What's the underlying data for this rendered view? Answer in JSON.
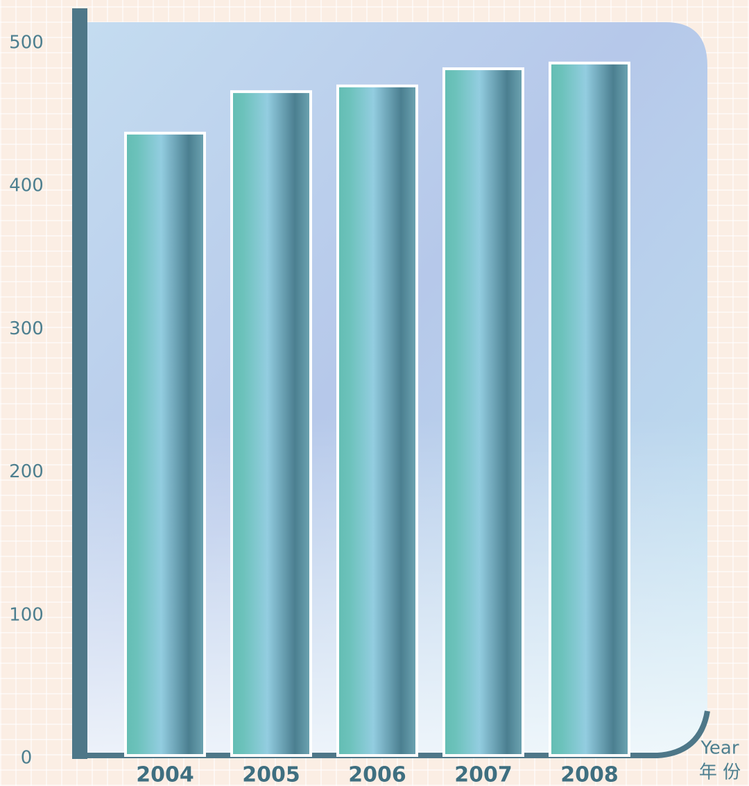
{
  "chart_data": {
    "type": "bar",
    "categories": [
      "2004",
      "2005",
      "2006",
      "2007",
      "2008"
    ],
    "values": [
      437,
      466,
      470,
      482,
      486
    ],
    "ylim": [
      0,
      500
    ],
    "yticks": [
      0,
      100,
      200,
      300,
      400,
      500
    ],
    "x_label": [
      "Year",
      "年 份"
    ],
    "color": "#6fb9c0"
  }
}
